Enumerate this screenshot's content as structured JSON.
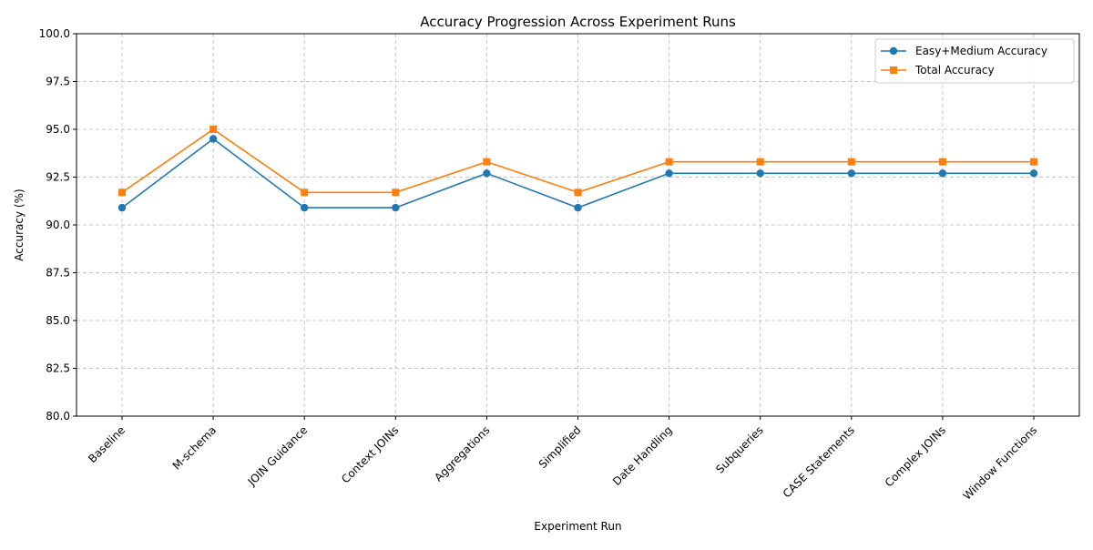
{
  "chart_data": {
    "type": "line",
    "title": "Accuracy Progression Across Experiment Runs",
    "xlabel": "Experiment Run",
    "ylabel": "Accuracy (%)",
    "categories": [
      "Baseline",
      "M-schema",
      "JOIN Guidance",
      "Context JOINs",
      "Aggregations",
      "Simplified",
      "Date Handling",
      "Subqueries",
      "CASE Statements",
      "Complex JOINs",
      "Window Functions"
    ],
    "series": [
      {
        "name": "Easy+Medium Accuracy",
        "values": [
          90.9,
          94.5,
          90.9,
          90.9,
          92.7,
          90.9,
          92.7,
          92.7,
          92.7,
          92.7,
          92.7
        ],
        "color": "#1f77b4",
        "marker": "circle"
      },
      {
        "name": "Total Accuracy",
        "values": [
          91.7,
          95.0,
          91.7,
          91.7,
          93.3,
          91.7,
          93.3,
          93.3,
          93.3,
          93.3,
          93.3
        ],
        "color": "#ff7f0e",
        "marker": "square"
      }
    ],
    "ylim": [
      80.0,
      100.0
    ],
    "yticks": [
      "80.0",
      "82.5",
      "85.0",
      "87.5",
      "90.0",
      "92.5",
      "95.0",
      "97.5",
      "100.0"
    ],
    "grid": true,
    "legend_position": "top-right"
  }
}
